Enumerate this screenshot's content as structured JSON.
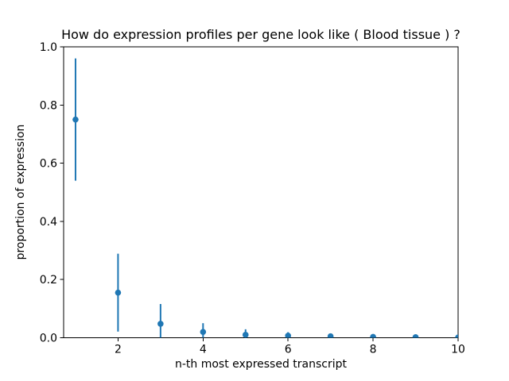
{
  "figure": {
    "background": "#ffffff"
  },
  "chart_data": {
    "type": "scatter",
    "title": "How do expression profiles per gene look like ( Blood tissue ) ?",
    "xlabel": "n-th most expressed transcript",
    "ylabel": "proportion of expression",
    "x": [
      1,
      2,
      3,
      4,
      5,
      6,
      7,
      8,
      9,
      10
    ],
    "y": [
      0.75,
      0.155,
      0.048,
      0.02,
      0.01,
      0.007,
      0.005,
      0.003,
      0.002,
      0.001
    ],
    "yerr": [
      0.21,
      0.134,
      0.068,
      0.03,
      0.019,
      0.012,
      0.009,
      0.005,
      0.004,
      0.003
    ],
    "xlim": [
      0.72,
      10
    ],
    "ylim": [
      0,
      1
    ],
    "xticks": [
      2,
      4,
      6,
      8,
      10
    ],
    "xtick_labels": [
      "2",
      "4",
      "6",
      "8",
      "10"
    ],
    "yticks": [
      0.0,
      0.2,
      0.4,
      0.6,
      0.8,
      1.0
    ],
    "ytick_labels": [
      "0.0",
      "0.2",
      "0.4",
      "0.6",
      "0.8",
      "1.0"
    ],
    "grid": false,
    "legend_position": "none",
    "marker_color": "#1f77b4",
    "errorbar_color": "#1f77b4",
    "axis_color": "#000000",
    "marker_style": "circle",
    "capsize": 0
  }
}
